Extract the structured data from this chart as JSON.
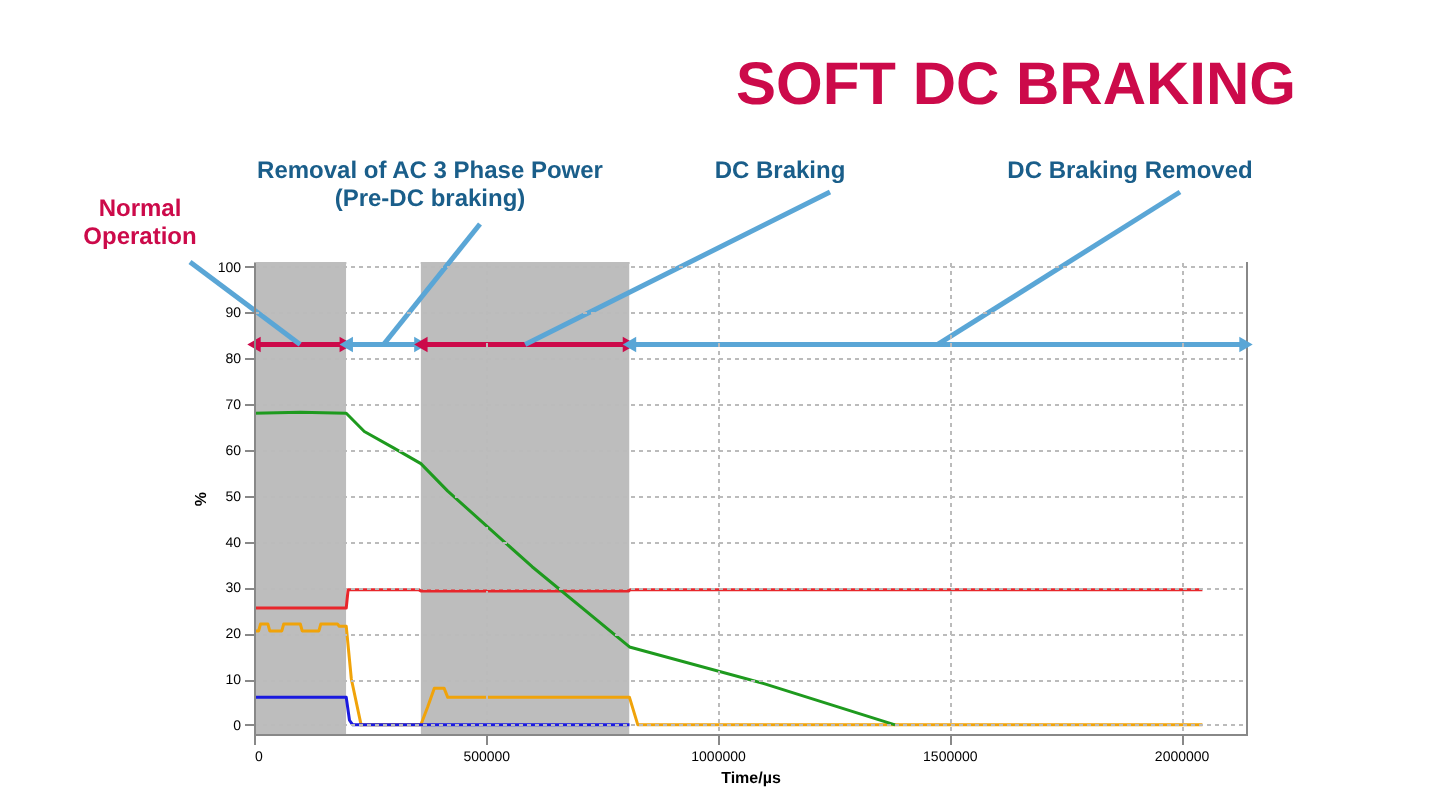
{
  "chart_data": {
    "type": "line",
    "title": "SOFT DC BRAKING",
    "xlabel": "Time/µs",
    "ylabel": "%",
    "xlim": [
      0,
      2140000
    ],
    "ylim": [
      -2,
      101
    ],
    "xticks": [
      0,
      500000,
      1000000,
      1500000,
      2000000
    ],
    "yticks": [
      0,
      10,
      20,
      30,
      40,
      50,
      60,
      70,
      80,
      90,
      100
    ],
    "grid": true,
    "line_style": "solid",
    "marker": "none",
    "bands": [
      {
        "axis": "x",
        "from": 0,
        "to": 199000,
        "label": "Normal Operation",
        "color": "#bdbdbd"
      },
      {
        "axis": "x",
        "from": 199000,
        "to": 360000,
        "label": "Removal of AC 3 Phase Power (Pre-DC braking)",
        "color": "#ffffff"
      },
      {
        "axis": "x",
        "from": 360000,
        "to": 810000,
        "label": "DC Braking",
        "color": "#bdbdbd"
      },
      {
        "axis": "x",
        "from": 810000,
        "to": 2140000,
        "label": "DC Braking Removed",
        "color": "#ffffff"
      }
    ],
    "series": [
      {
        "color": "#e8262b",
        "x": [
          0,
          199000,
          203000,
          355000,
          360000,
          808000,
          812000,
          2046000
        ],
        "values": [
          25.5,
          25.5,
          29.5,
          29.5,
          29.2,
          29.2,
          29.5,
          29.5
        ]
      },
      {
        "color": "#f0a30a",
        "x": [
          0,
          10000,
          14000,
          30000,
          34000,
          60000,
          64000,
          100000,
          104000,
          140000,
          144000,
          180000,
          184000,
          199000,
          210000,
          231000,
          360000,
          375000,
          389000,
          410000,
          418000,
          810000,
          828000,
          2046000
        ],
        "values": [
          20.5,
          20.5,
          22,
          22,
          20.5,
          20.5,
          22,
          22,
          20.5,
          20.5,
          22,
          22,
          21.5,
          21.5,
          10,
          0,
          0,
          4,
          8,
          8,
          6,
          6,
          0,
          0
        ]
      },
      {
        "color": "#1a1adf",
        "x": [
          0,
          199000,
          206000,
          213000,
          810000
        ],
        "values": [
          6,
          6,
          1,
          0,
          0
        ]
      },
      {
        "color": "#1e9a1e",
        "x": [
          0,
          100000,
          199000,
          238000,
          300000,
          360000,
          418000,
          600000,
          810000,
          1100000,
          1383000
        ],
        "values": [
          68,
          68.2,
          68,
          64,
          60.5,
          57,
          51,
          34.5,
          17,
          9,
          0
        ]
      }
    ]
  }
}
